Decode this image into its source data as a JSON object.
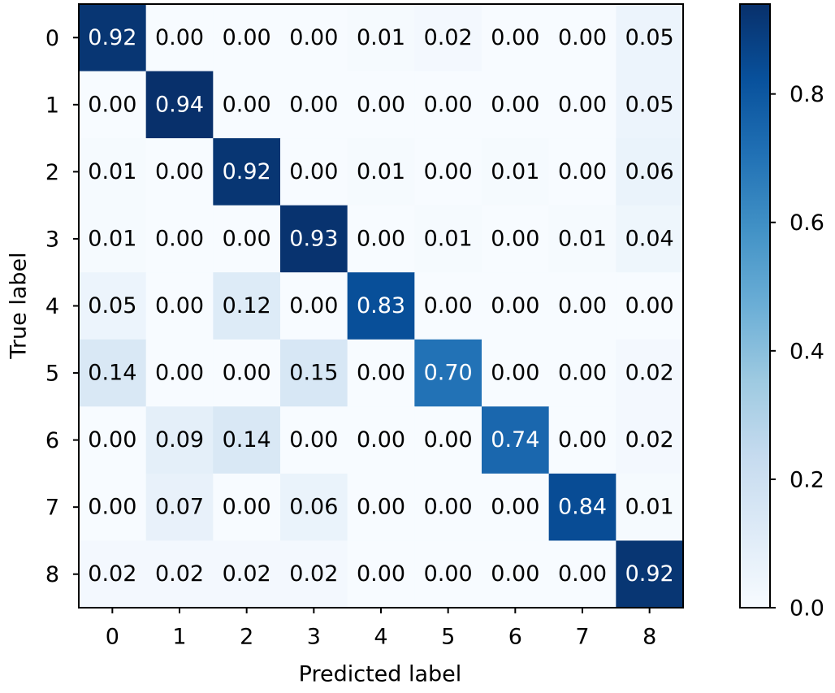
{
  "chart_data": {
    "type": "heatmap",
    "x_label": "Predicted label",
    "y_label": "True label",
    "x_categories": [
      "0",
      "1",
      "2",
      "3",
      "4",
      "5",
      "6",
      "7",
      "8"
    ],
    "y_categories": [
      "0",
      "1",
      "2",
      "3",
      "4",
      "5",
      "6",
      "7",
      "8"
    ],
    "values": [
      [
        0.92,
        0,
        0,
        0,
        0.01,
        0.02,
        0,
        0,
        0.05
      ],
      [
        0,
        0.94,
        0,
        0,
        0,
        0,
        0,
        0,
        0.05
      ],
      [
        0.01,
        0,
        0.92,
        0,
        0.01,
        0,
        0.01,
        0,
        0.06
      ],
      [
        0.01,
        0,
        0,
        0.93,
        0,
        0.01,
        0,
        0.01,
        0.04
      ],
      [
        0.05,
        0,
        0.12,
        0,
        0.83,
        0,
        0,
        0,
        0
      ],
      [
        0.14,
        0,
        0,
        0.15,
        0,
        0.7,
        0,
        0,
        0.02
      ],
      [
        0,
        0.09,
        0.14,
        0,
        0,
        0,
        0.74,
        0,
        0.02
      ],
      [
        0,
        0.07,
        0,
        0.06,
        0,
        0,
        0,
        0.84,
        0.01
      ],
      [
        0.02,
        0.02,
        0.02,
        0.02,
        0,
        0,
        0,
        0,
        0.92
      ]
    ],
    "value_labels": [
      [
        "0.92",
        "0.00",
        "0.00",
        "0.00",
        "0.01",
        "0.02",
        "0.00",
        "0.00",
        "0.05"
      ],
      [
        "0.00",
        "0.94",
        "0.00",
        "0.00",
        "0.00",
        "0.00",
        "0.00",
        "0.00",
        "0.05"
      ],
      [
        "0.01",
        "0.00",
        "0.92",
        "0.00",
        "0.01",
        "0.00",
        "0.01",
        "0.00",
        "0.06"
      ],
      [
        "0.01",
        "0.00",
        "0.00",
        "0.93",
        "0.00",
        "0.01",
        "0.00",
        "0.01",
        "0.04"
      ],
      [
        "0.05",
        "0.00",
        "0.12",
        "0.00",
        "0.83",
        "0.00",
        "0.00",
        "0.00",
        "0.00"
      ],
      [
        "0.14",
        "0.00",
        "0.00",
        "0.15",
        "0.00",
        "0.70",
        "0.00",
        "0.00",
        "0.02"
      ],
      [
        "0.00",
        "0.09",
        "0.14",
        "0.00",
        "0.00",
        "0.00",
        "0.74",
        "0.00",
        "0.02"
      ],
      [
        "0.00",
        "0.07",
        "0.00",
        "0.06",
        "0.00",
        "0.00",
        "0.00",
        "0.84",
        "0.01"
      ],
      [
        "0.02",
        "0.02",
        "0.02",
        "0.02",
        "0.00",
        "0.00",
        "0.00",
        "0.00",
        "0.92"
      ]
    ],
    "colormap": [
      "#f7fbff",
      "#deebf7",
      "#c6dbef",
      "#9ecae1",
      "#6baed6",
      "#4292c6",
      "#2171b5",
      "#08519c",
      "#08306b"
    ],
    "clim": [
      0,
      0.94
    ],
    "cticks": [
      {
        "value": 0,
        "label": "0.0"
      },
      {
        "value": 0.2,
        "label": "0.2"
      },
      {
        "value": 0.4,
        "label": "0.4"
      },
      {
        "value": 0.6,
        "label": "0.6"
      },
      {
        "value": 0.8,
        "label": "0.8"
      }
    ]
  }
}
